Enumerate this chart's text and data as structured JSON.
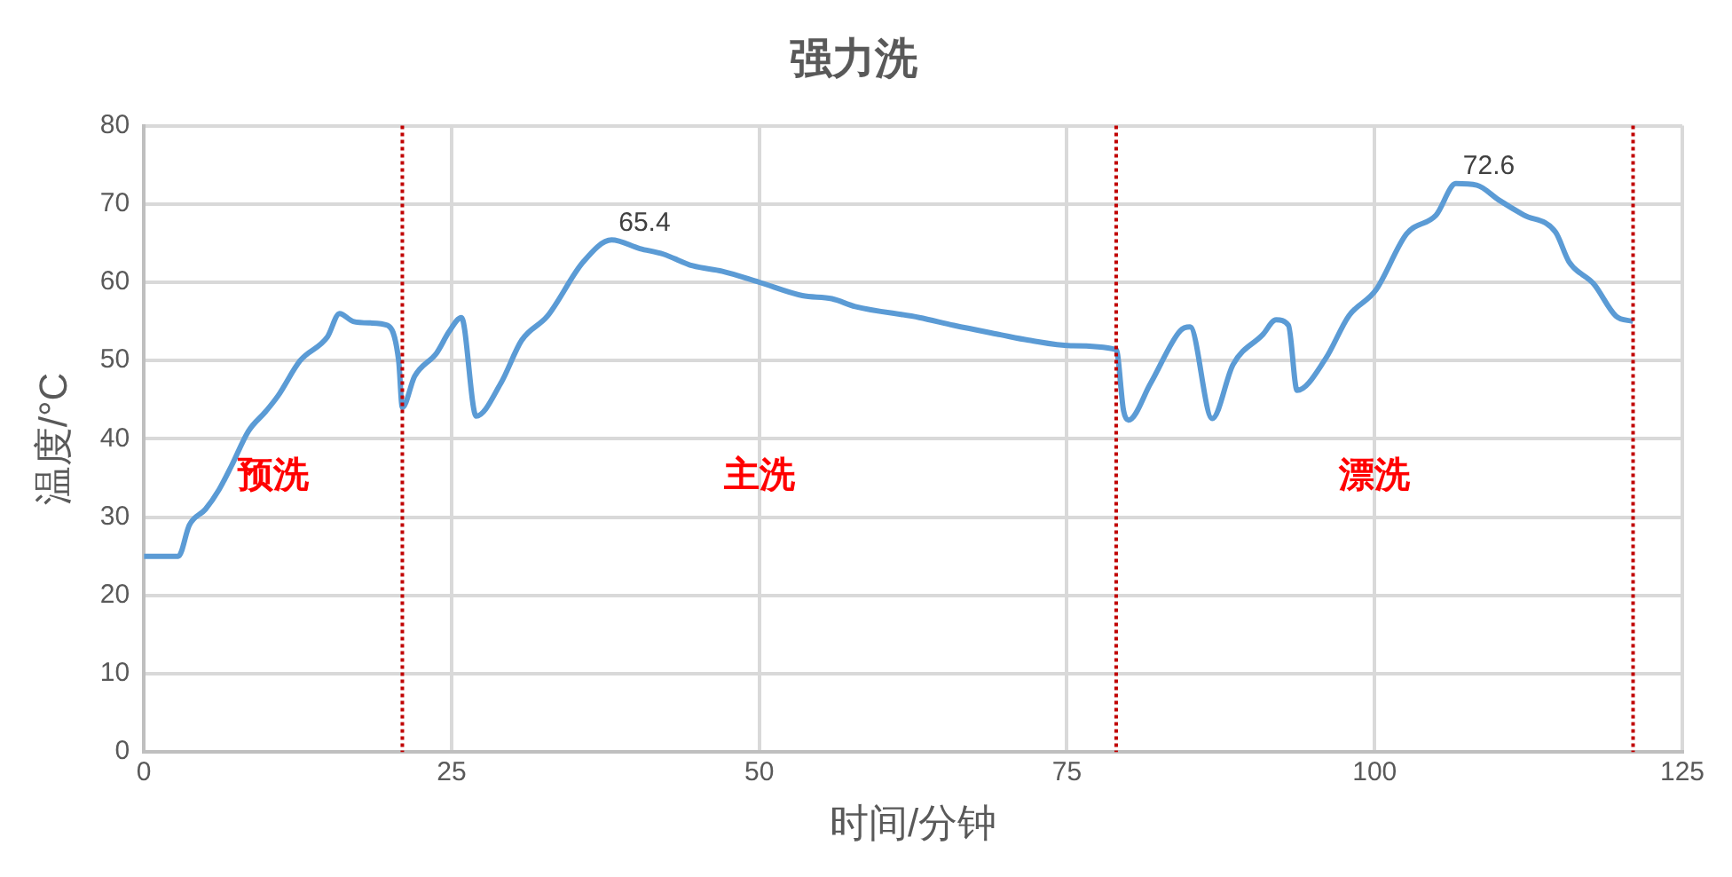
{
  "chart_data": {
    "type": "line",
    "title": "强力洗",
    "xlabel": "时间/分钟",
    "ylabel": "温度/°C",
    "xlim": [
      0,
      125
    ],
    "xticks": [
      0,
      25,
      50,
      75,
      100,
      125
    ],
    "ylim": [
      0,
      80
    ],
    "yticks": [
      0,
      10,
      20,
      30,
      40,
      50,
      60,
      70,
      80
    ],
    "grid": true,
    "legend": false,
    "marker": "none",
    "line_style": "solid",
    "series": [
      {
        "color": "#5b9bd5",
        "x": [
          0,
          2.8,
          3.7,
          5,
          6.1,
          7.1,
          8.5,
          9.9,
          10.9,
          12.7,
          14.9,
          15.9,
          17,
          18.4,
          19.8,
          20.7,
          21,
          22,
          23.8,
          24.8,
          25.8,
          27,
          29,
          30.7,
          32.8,
          35.7,
          38,
          40.3,
          42.2,
          44.6,
          47,
          50,
          53.5,
          55.9,
          57.8,
          63,
          65.8,
          69.6,
          71.9,
          75.3,
          79,
          79.6,
          80,
          81.8,
          84.2,
          85,
          86.8,
          88.5,
          90.9,
          92,
          93,
          93.7,
          96,
          97.9,
          100.1,
          102.6,
          105,
          106.6,
          108.3,
          110.1,
          112.1,
          114.7,
          115.8,
          117.8,
          119.6,
          121
        ],
        "values": [
          25,
          25,
          29,
          31,
          33.5,
          36.5,
          41,
          43.5,
          45.5,
          50,
          53,
          56,
          55,
          54.8,
          54.5,
          50,
          44,
          48,
          51,
          53.7,
          55.5,
          42.9,
          47.1,
          52.6,
          55.7,
          62.6,
          65.4,
          64.3,
          63.6,
          62.1,
          61.4,
          60,
          58.3,
          57.9,
          56.9,
          55.5,
          54.5,
          53.3,
          52.6,
          51.9,
          51.4,
          43.6,
          42.4,
          47.1,
          53.8,
          54.3,
          42.6,
          49.5,
          53.3,
          55.2,
          54.5,
          46.2,
          50.2,
          55.7,
          59,
          66.2,
          68.6,
          72.6,
          72.4,
          70.5,
          68.6,
          66.4,
          62.6,
          59.8,
          55.7,
          55
        ],
        "value_labels": [
          null,
          null,
          null,
          null,
          null,
          null,
          null,
          null,
          null,
          null,
          null,
          null,
          null,
          null,
          null,
          null,
          null,
          null,
          null,
          null,
          null,
          null,
          null,
          null,
          null,
          null,
          "65.4",
          null,
          null,
          null,
          null,
          null,
          null,
          null,
          null,
          null,
          null,
          null,
          null,
          null,
          null,
          null,
          null,
          null,
          null,
          null,
          null,
          null,
          null,
          null,
          null,
          null,
          null,
          null,
          null,
          null,
          null,
          "72.6",
          null,
          null,
          null,
          null,
          null,
          null,
          null,
          null
        ]
      }
    ],
    "ref_lines": [
      {
        "axis": "x",
        "value": 21,
        "color": "#c00000",
        "line_style": "dotted"
      },
      {
        "axis": "x",
        "value": 79,
        "color": "#c00000",
        "line_style": "dotted"
      },
      {
        "axis": "x",
        "value": 121,
        "color": "#c00000",
        "line_style": "dotted"
      }
    ],
    "annotations": [
      "预洗",
      "主洗",
      "漂洗"
    ]
  }
}
